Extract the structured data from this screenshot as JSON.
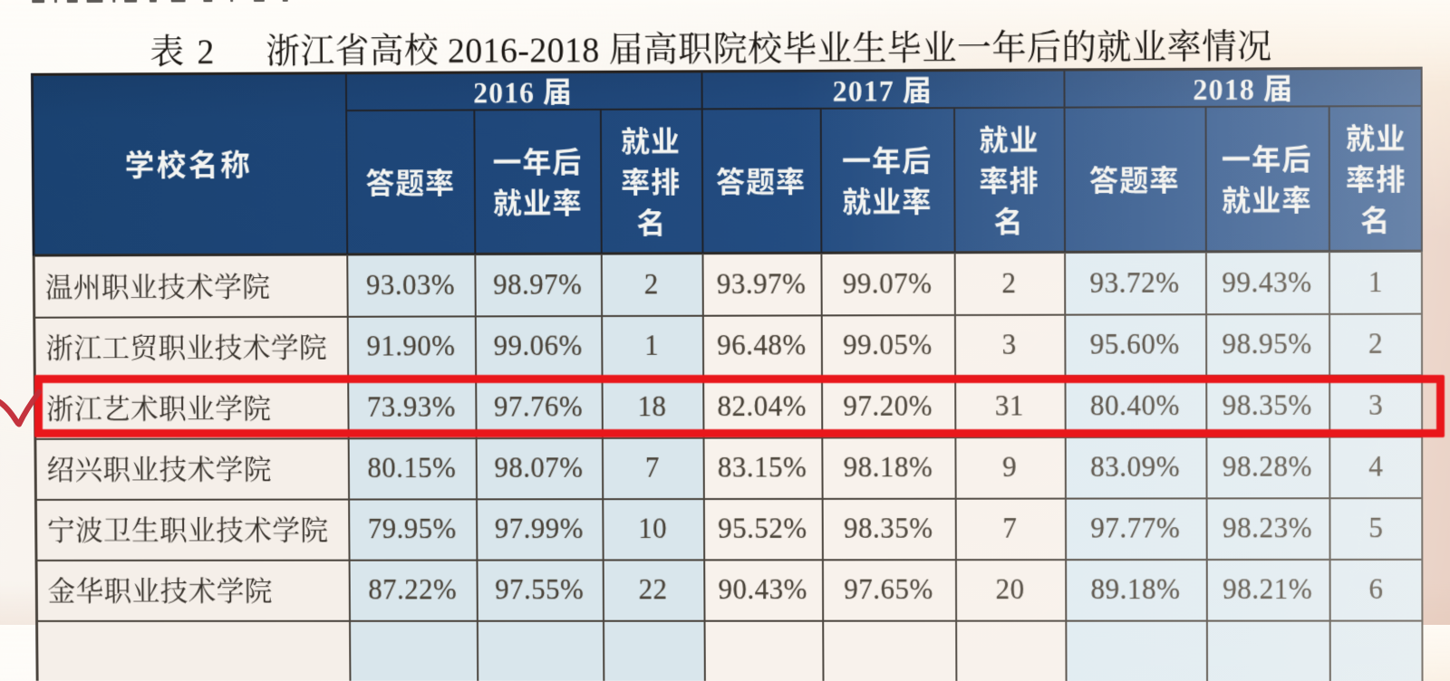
{
  "document": {
    "title_label": "表 2",
    "title_text": "浙江省高校 2016-2018 届高职院校毕业生毕业一年后的就业率情况"
  },
  "table": {
    "school_column_header": "学校名称",
    "groups": [
      {
        "year": "2016 届",
        "columns": [
          "答题率",
          "一年后就业率",
          "就业率排名"
        ]
      },
      {
        "year": "2017 届",
        "columns": [
          "答题率",
          "一年后就业率",
          "就业率排名"
        ]
      },
      {
        "year": "2018 届",
        "columns": [
          "答题率",
          "一年后就业率",
          "就业率排名"
        ]
      }
    ],
    "rows": [
      {
        "school": "温州职业技术学院",
        "values": [
          "93.03%",
          "98.97%",
          "2",
          "93.97%",
          "99.07%",
          "2",
          "93.72%",
          "99.43%",
          "1"
        ]
      },
      {
        "school": "浙江工贸职业技术学院",
        "values": [
          "91.90%",
          "99.06%",
          "1",
          "96.48%",
          "99.05%",
          "3",
          "95.60%",
          "98.95%",
          "2"
        ]
      },
      {
        "school": "浙江艺术职业学院",
        "values": [
          "73.93%",
          "97.76%",
          "18",
          "82.04%",
          "97.20%",
          "31",
          "80.40%",
          "98.35%",
          "3"
        ]
      },
      {
        "school": "绍兴职业技术学院",
        "values": [
          "80.15%",
          "98.07%",
          "7",
          "83.15%",
          "98.18%",
          "9",
          "83.09%",
          "98.28%",
          "4"
        ]
      },
      {
        "school": "宁波卫生职业技术学院",
        "values": [
          "79.95%",
          "97.99%",
          "10",
          "95.52%",
          "98.35%",
          "7",
          "97.77%",
          "98.23%",
          "5"
        ]
      },
      {
        "school": "金华职业技术学院",
        "values": [
          "87.22%",
          "97.55%",
          "22",
          "90.43%",
          "97.65%",
          "20",
          "89.18%",
          "98.21%",
          "6"
        ]
      },
      {
        "school": "",
        "values": [
          "",
          "",
          "",
          "",
          "",
          "",
          "",
          "",
          ""
        ]
      }
    ],
    "highlight": {
      "school": "浙江艺术职业学院",
      "row_index": 2,
      "marks": [
        "red-rectangle",
        "red-checkmark"
      ]
    }
  },
  "colors": {
    "header_blue": "#21497c",
    "tint_2016": "#d9e6ec",
    "tint_2017": "#f7f3ef",
    "tint_2018": "#dfecf3",
    "highlight_red": "#e81418",
    "checkmark_red": "#c22c38",
    "page_paper": "#f6efe8"
  }
}
